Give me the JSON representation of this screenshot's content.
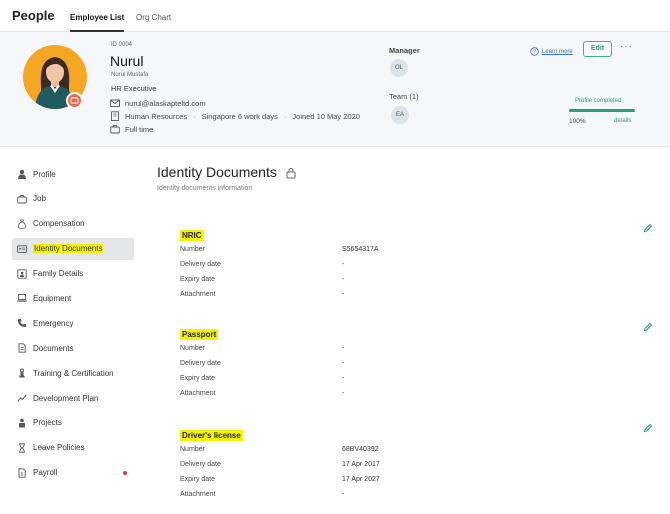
{
  "app": {
    "title": "People"
  },
  "tabs": [
    {
      "label": "Employee List",
      "active": true
    },
    {
      "label": "Org Chart",
      "active": false
    }
  ],
  "profile": {
    "id": "ID 0004",
    "name": "Nurul",
    "full_name": "Nurul Mustafa",
    "position": "HR Executive",
    "email": "nurul@alaskapteltd.com",
    "department": "Human Resources",
    "schedule": "Singapore 6 work days",
    "joined": "Joined 10 May 2020",
    "employment_type": "Full time"
  },
  "manager": {
    "label": "Manager",
    "initials": "OL"
  },
  "team": {
    "label": "Team (1)",
    "members": [
      "EA"
    ]
  },
  "actions": {
    "learn_more": "Learn more",
    "edit": "Edit",
    "more": "···"
  },
  "profile_completion": {
    "label": "Profile completed",
    "percent_text": "100%",
    "value": 1.0,
    "details": "details",
    "color": "#2a9d7b"
  },
  "sidebar": {
    "items": [
      {
        "label": "Profile",
        "icon": "person-icon"
      },
      {
        "label": "Job",
        "icon": "briefcase-icon"
      },
      {
        "label": "Compensation",
        "icon": "money-bag-icon"
      },
      {
        "label": "Identity Documents",
        "icon": "id-card-icon",
        "active": true
      },
      {
        "label": "Family Details",
        "icon": "family-icon"
      },
      {
        "label": "Equipment",
        "icon": "laptop-icon"
      },
      {
        "label": "Emergency",
        "icon": "phone-icon"
      },
      {
        "label": "Documents",
        "icon": "document-icon"
      },
      {
        "label": "Training & Certification",
        "icon": "certificate-icon"
      },
      {
        "label": "Development Plan",
        "icon": "chart-icon"
      },
      {
        "label": "Projects",
        "icon": "projects-icon"
      },
      {
        "label": "Leave Policies",
        "icon": "hourglass-icon"
      },
      {
        "label": "Payroll",
        "icon": "payroll-icon",
        "notification": true
      }
    ]
  },
  "main": {
    "title": "Identity Documents",
    "subtitle": "Identity documents information",
    "documents": [
      {
        "title": "NRIC",
        "rows": [
          {
            "label": "Number",
            "value": "S5654317A"
          },
          {
            "label": "Delivery date",
            "value": "-"
          },
          {
            "label": "Expiry date",
            "value": "-"
          },
          {
            "label": "Attachment",
            "value": "-"
          }
        ]
      },
      {
        "title": "Passport",
        "rows": [
          {
            "label": "Number",
            "value": "-"
          },
          {
            "label": "Delivery date",
            "value": "-"
          },
          {
            "label": "Expiry date",
            "value": "-"
          },
          {
            "label": "Attachment",
            "value": "-"
          }
        ]
      },
      {
        "title": "Driver's license",
        "rows": [
          {
            "label": "Number",
            "value": "68BV40392"
          },
          {
            "label": "Delivery date",
            "value": "17 Apr 2017"
          },
          {
            "label": "Expiry date",
            "value": "17 Apr 2027"
          },
          {
            "label": "Attachment",
            "value": "-"
          }
        ]
      }
    ]
  },
  "colors": {
    "accent": "#2a9d7b",
    "highlight": "#f5f400",
    "avatar_bg": "#f5a623",
    "notification": "#e23a3a"
  }
}
